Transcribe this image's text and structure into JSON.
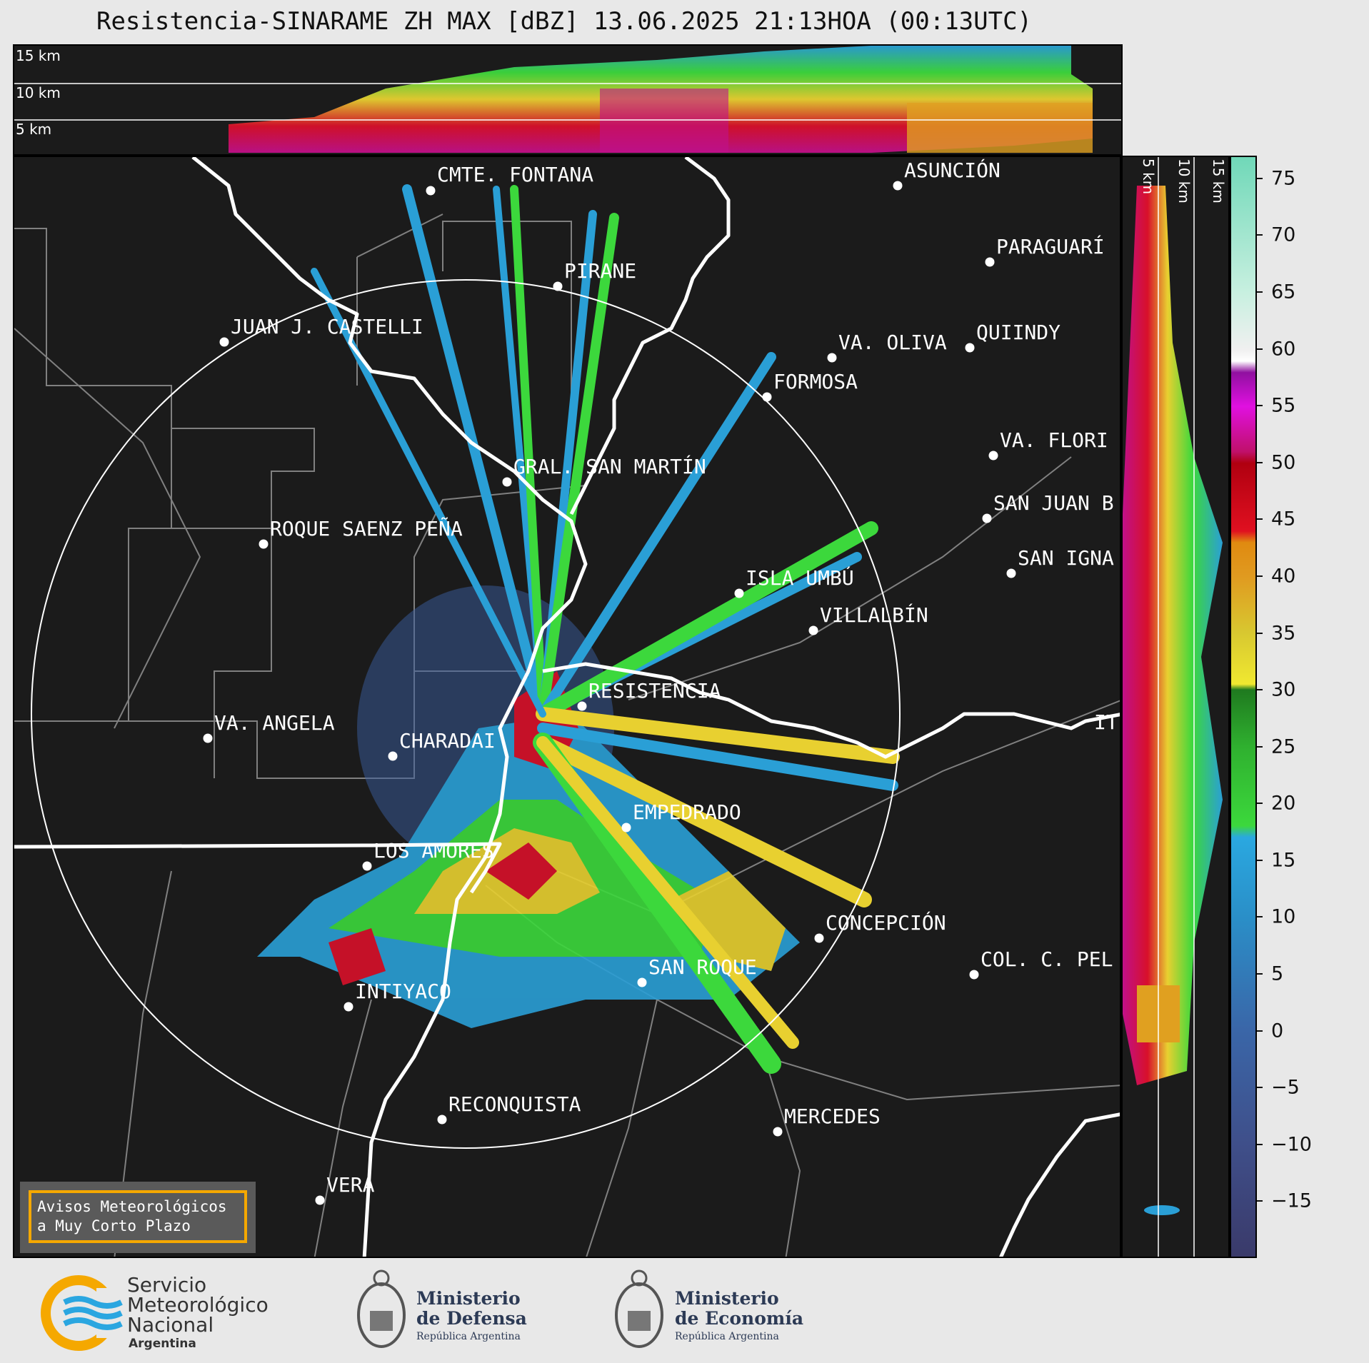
{
  "title": "Resistencia-SINARAME ZH MAX [dBZ] 13.06.2025 21:13HOA (00:13UTC)",
  "top_panel": {
    "altitudes": [
      "15 km",
      "10 km",
      "5 km"
    ]
  },
  "right_panel": {
    "altitudes": [
      "5 km",
      "10 km",
      "15 km"
    ]
  },
  "colorbar": {
    "unit": "dBZ",
    "ticks": [
      "75",
      "70",
      "65",
      "60",
      "55",
      "50",
      "45",
      "40",
      "35",
      "30",
      "25",
      "20",
      "15",
      "10",
      "5",
      "0",
      "−5",
      "−10",
      "−15"
    ],
    "tick_values": [
      75,
      70,
      65,
      60,
      55,
      50,
      45,
      40,
      35,
      30,
      25,
      20,
      15,
      10,
      5,
      0,
      -5,
      -10,
      -15
    ],
    "range": [
      -20,
      77
    ]
  },
  "cities": [
    {
      "name": "CMTE. FONTANA"
    },
    {
      "name": "ASUNCIÓN"
    },
    {
      "name": "PARAGUARÍ"
    },
    {
      "name": "PIRANE"
    },
    {
      "name": "JUAN J. CASTELLI"
    },
    {
      "name": "VA. OLIVA"
    },
    {
      "name": "QUIINDY"
    },
    {
      "name": "FORMOSA"
    },
    {
      "name": "VA. FLORI"
    },
    {
      "name": "GRAL. SAN MARTÍN"
    },
    {
      "name": "SAN JUAN B"
    },
    {
      "name": "ROQUE SAENZ PEÑA"
    },
    {
      "name": "SAN IGNA"
    },
    {
      "name": "ISLA UMBÚ"
    },
    {
      "name": "VILLALBÍN"
    },
    {
      "name": "RESISTENCIA"
    },
    {
      "name": "VA. ANGELA"
    },
    {
      "name": "CHARADAI"
    },
    {
      "name": "IT"
    },
    {
      "name": "EMPEDRADO"
    },
    {
      "name": "LOS AMORES"
    },
    {
      "name": "CONCEPCIÓN"
    },
    {
      "name": "COL. C. PEL"
    },
    {
      "name": "SAN ROQUE"
    },
    {
      "name": "INTIYACO"
    },
    {
      "name": "RECONQUISTA"
    },
    {
      "name": "MERCEDES"
    },
    {
      "name": "VERA"
    }
  ],
  "aviso": {
    "line1": "Avisos Meteorológicos",
    "line2": "a Muy Corto Plazo"
  },
  "footer": {
    "smn_line1": "Servicio",
    "smn_line2": "Meteorológico",
    "smn_line3": "Nacional",
    "smn_line4": "Argentina",
    "defensa_line1": "Ministerio",
    "defensa_line2": "de Defensa",
    "defensa_line3": "República Argentina",
    "economia_line1": "Ministerio",
    "economia_line2": "de Economía",
    "economia_line3": "República Argentina"
  },
  "colors": {
    "background": "#1b1b1b",
    "rivers": "#ffffff",
    "borders": "#808080",
    "aviso_border": "#f5a800"
  }
}
